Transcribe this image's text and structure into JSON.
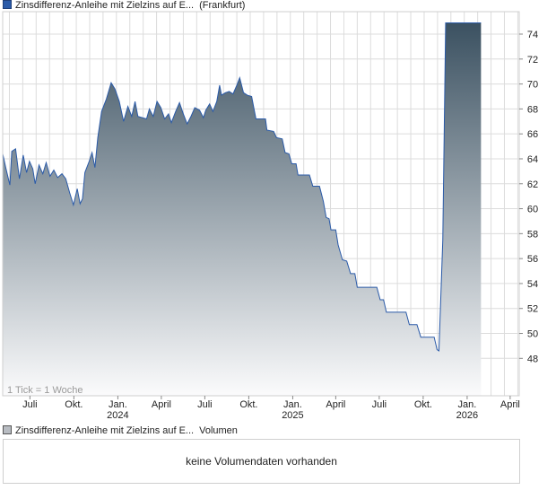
{
  "price_legend": {
    "series_name": "Zinsdifferenz-Anleihe mit Zielzins auf E...",
    "exchange": "(Frankfurt)"
  },
  "volume_legend": {
    "series_name": "Zinsdifferenz-Anleihe mit Zielzins auf E...",
    "label": "Volumen"
  },
  "volume_panel": {
    "message": "keine Volumendaten vorhanden"
  },
  "colors": {
    "line": "#2a5aa8",
    "area_top": "#3b5161",
    "area_bottom": "#fbfbfc",
    "grid": "#dcdcdc"
  },
  "chart_data": {
    "type": "area",
    "interval_note": "1 Tick = 1 Woche",
    "ylim": [
      45,
      75.8
    ],
    "yticks": [
      48,
      50,
      52,
      54,
      56,
      58,
      60,
      62,
      64,
      66,
      68,
      70,
      72,
      74
    ],
    "xlim": [
      "2023-05-05",
      "2026-04-20"
    ],
    "xticks": [
      {
        "date": "2023-07-01",
        "label": "Juli",
        "year": ""
      },
      {
        "date": "2023-10-01",
        "label": "Okt.",
        "year": ""
      },
      {
        "date": "2024-01-01",
        "label": "Jan.",
        "year": "2024"
      },
      {
        "date": "2024-04-01",
        "label": "April",
        "year": ""
      },
      {
        "date": "2024-07-01",
        "label": "Juli",
        "year": ""
      },
      {
        "date": "2024-10-01",
        "label": "Okt.",
        "year": ""
      },
      {
        "date": "2025-01-01",
        "label": "Jan.",
        "year": "2025"
      },
      {
        "date": "2025-04-01",
        "label": "April",
        "year": ""
      },
      {
        "date": "2025-07-01",
        "label": "Juli",
        "year": ""
      },
      {
        "date": "2025-10-01",
        "label": "Okt.",
        "year": ""
      },
      {
        "date": "2026-01-01",
        "label": "Jan.",
        "year": "2026"
      },
      {
        "date": "2026-04-01",
        "label": "April",
        "year": ""
      }
    ],
    "grid": true,
    "series": [
      {
        "values": [
          [
            "2023-05-05",
            64.4
          ],
          [
            "2023-05-12",
            63.2
          ],
          [
            "2023-05-20",
            61.9
          ],
          [
            "2023-05-24",
            64.6
          ],
          [
            "2023-06-01",
            64.8
          ],
          [
            "2023-06-09",
            62.4
          ],
          [
            "2023-06-17",
            64.3
          ],
          [
            "2023-06-24",
            62.9
          ],
          [
            "2023-06-30",
            63.8
          ],
          [
            "2023-07-07",
            63.2
          ],
          [
            "2023-07-12",
            62.0
          ],
          [
            "2023-07-20",
            63.5
          ],
          [
            "2023-07-28",
            62.8
          ],
          [
            "2023-08-04",
            63.7
          ],
          [
            "2023-08-12",
            62.6
          ],
          [
            "2023-08-20",
            63.1
          ],
          [
            "2023-08-28",
            62.5
          ],
          [
            "2023-09-06",
            62.8
          ],
          [
            "2023-09-14",
            62.4
          ],
          [
            "2023-09-22",
            61.3
          ],
          [
            "2023-09-30",
            60.3
          ],
          [
            "2023-10-08",
            61.6
          ],
          [
            "2023-10-14",
            60.4
          ],
          [
            "2023-10-19",
            60.8
          ],
          [
            "2023-10-24",
            62.9
          ],
          [
            "2023-11-02",
            63.8
          ],
          [
            "2023-11-08",
            64.5
          ],
          [
            "2023-11-14",
            63.3
          ],
          [
            "2023-11-20",
            65.7
          ],
          [
            "2023-11-28",
            67.8
          ],
          [
            "2023-12-08",
            68.8
          ],
          [
            "2023-12-18",
            70.1
          ],
          [
            "2023-12-26",
            69.6
          ],
          [
            "2024-01-04",
            68.6
          ],
          [
            "2024-01-13",
            67.0
          ],
          [
            "2024-01-22",
            68.2
          ],
          [
            "2024-01-30",
            67.4
          ],
          [
            "2024-02-06",
            68.6
          ],
          [
            "2024-02-12",
            67.4
          ],
          [
            "2024-02-21",
            67.3
          ],
          [
            "2024-03-01",
            67.2
          ],
          [
            "2024-03-07",
            68.0
          ],
          [
            "2024-03-15",
            67.4
          ],
          [
            "2024-03-23",
            68.6
          ],
          [
            "2024-03-31",
            68.1
          ],
          [
            "2024-04-08",
            67.2
          ],
          [
            "2024-04-16",
            67.6
          ],
          [
            "2024-04-22",
            66.9
          ],
          [
            "2024-05-01",
            67.8
          ],
          [
            "2024-05-09",
            68.5
          ],
          [
            "2024-05-17",
            67.6
          ],
          [
            "2024-05-25",
            66.8
          ],
          [
            "2024-06-02",
            67.4
          ],
          [
            "2024-06-10",
            68.1
          ],
          [
            "2024-06-20",
            67.9
          ],
          [
            "2024-06-28",
            67.3
          ],
          [
            "2024-07-03",
            67.9
          ],
          [
            "2024-07-11",
            68.4
          ],
          [
            "2024-07-18",
            67.8
          ],
          [
            "2024-07-26",
            68.6
          ],
          [
            "2024-08-01",
            69.9
          ],
          [
            "2024-08-05",
            69.1
          ],
          [
            "2024-08-13",
            69.3
          ],
          [
            "2024-08-21",
            69.4
          ],
          [
            "2024-08-29",
            69.2
          ],
          [
            "2024-09-06",
            69.9
          ],
          [
            "2024-09-12",
            70.5
          ],
          [
            "2024-09-20",
            69.3
          ],
          [
            "2024-09-28",
            69.1
          ],
          [
            "2024-10-07",
            69.0
          ],
          [
            "2024-10-16",
            67.2
          ],
          [
            "2024-11-05",
            67.2
          ],
          [
            "2024-11-08",
            66.3
          ],
          [
            "2024-11-22",
            66.2
          ],
          [
            "2024-11-28",
            65.7
          ],
          [
            "2024-12-10",
            65.6
          ],
          [
            "2024-12-16",
            64.5
          ],
          [
            "2024-12-24",
            64.4
          ],
          [
            "2024-12-30",
            63.6
          ],
          [
            "2025-01-08",
            63.6
          ],
          [
            "2025-01-12",
            62.7
          ],
          [
            "2025-02-05",
            62.7
          ],
          [
            "2025-02-12",
            61.8
          ],
          [
            "2025-02-26",
            61.8
          ],
          [
            "2025-03-06",
            60.6
          ],
          [
            "2025-03-12",
            59.3
          ],
          [
            "2025-03-18",
            59.2
          ],
          [
            "2025-03-22",
            58.3
          ],
          [
            "2025-04-01",
            58.3
          ],
          [
            "2025-04-06",
            57.1
          ],
          [
            "2025-04-15",
            55.9
          ],
          [
            "2025-04-24",
            55.8
          ],
          [
            "2025-05-02",
            54.8
          ],
          [
            "2025-05-11",
            54.8
          ],
          [
            "2025-05-16",
            53.7
          ],
          [
            "2025-06-06",
            53.7
          ],
          [
            "2025-06-10",
            53.7
          ],
          [
            "2025-06-26",
            53.7
          ],
          [
            "2025-07-03",
            52.7
          ],
          [
            "2025-07-10",
            52.7
          ],
          [
            "2025-07-16",
            51.7
          ],
          [
            "2025-08-06",
            51.7
          ],
          [
            "2025-08-26",
            51.7
          ],
          [
            "2025-09-02",
            50.7
          ],
          [
            "2025-09-18",
            50.7
          ],
          [
            "2025-09-26",
            49.7
          ],
          [
            "2025-10-10",
            49.7
          ],
          [
            "2025-10-24",
            49.7
          ],
          [
            "2025-10-30",
            48.7
          ],
          [
            "2025-11-03",
            48.6
          ],
          [
            "2025-11-11",
            57.5
          ],
          [
            "2025-11-17",
            74.9
          ],
          [
            "2026-01-12",
            74.9
          ],
          [
            "2026-01-30",
            74.9
          ]
        ]
      }
    ]
  }
}
